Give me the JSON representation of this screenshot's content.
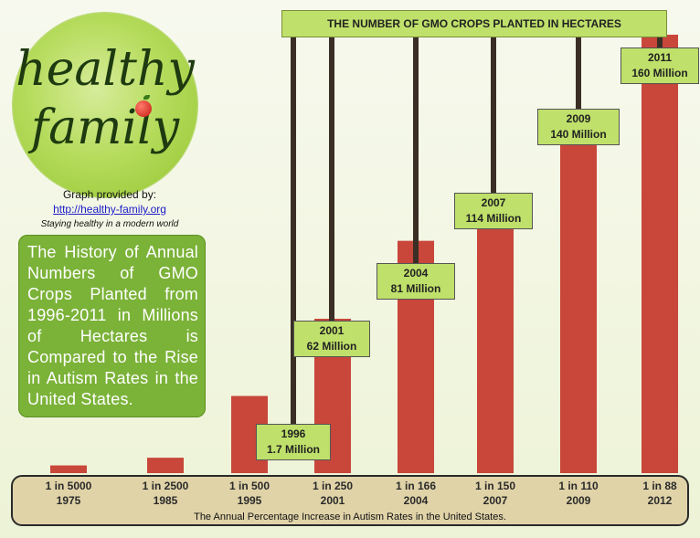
{
  "logo": {
    "word1": "healthy",
    "word2": "family"
  },
  "credit": {
    "provided_by": "Graph provided by:",
    "url": "http://healthy-family.org",
    "tagline": "Staying healthy in a modern world"
  },
  "history_text": "The History of Annual Numbers of GMO Crops Planted from 1996-2011 in Millions of Hectares is Compared to the Rise in Autism Rates in the United States.",
  "colors": {
    "bar": "#c8473a",
    "banner": "#bfe06a",
    "box": "#7bb238",
    "base": "#e0d3a8"
  },
  "chart_data": {
    "type": "bar",
    "title": "THE NUMBER OF GMO CROPS PLANTED IN HECTARES",
    "xlabel": "The Annual Percentage Increase in Autism Rates in the United States.",
    "categories": [
      {
        "rate": "1 in 5000",
        "year": "1975"
      },
      {
        "rate": "1 in 2500",
        "year": "1985"
      },
      {
        "rate": "1 in 500",
        "year": "1995"
      },
      {
        "rate": "1 in 250",
        "year": "2001"
      },
      {
        "rate": "1 in 166",
        "year": "2004"
      },
      {
        "rate": "1 in 150",
        "year": "2007"
      },
      {
        "rate": "1 in 110",
        "year": "2009"
      },
      {
        "rate": "1 in 88",
        "year": "2012"
      }
    ],
    "autism_per_10000": [
      2,
      4,
      20,
      40,
      60.2,
      66.7,
      90.9,
      113.6
    ],
    "gmo": [
      {
        "year": "1996",
        "amount": "1.7 Million",
        "value": 1.7
      },
      {
        "year": "2001",
        "amount": "62 Million",
        "value": 62
      },
      {
        "year": "2004",
        "amount": "81 Million",
        "value": 81
      },
      {
        "year": "2007",
        "amount": "114 Million",
        "value": 114
      },
      {
        "year": "2009",
        "amount": "140 Million",
        "value": 140
      },
      {
        "year": "2011",
        "amount": "160 Million",
        "value": 160
      }
    ]
  }
}
